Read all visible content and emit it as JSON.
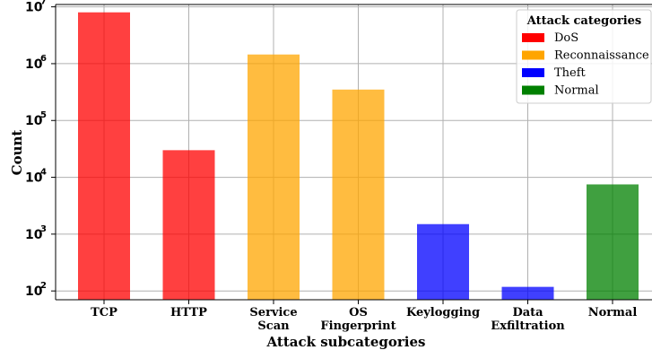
{
  "chart_data": {
    "type": "bar",
    "xlabel": "Attack subcategories",
    "ylabel": "Count",
    "yscale": "log",
    "ylim": [
      70,
      11000000
    ],
    "yticks": [
      {
        "base": "10",
        "exp": "2",
        "value": 100
      },
      {
        "base": "10",
        "exp": "3",
        "value": 1000
      },
      {
        "base": "10",
        "exp": "4",
        "value": 10000
      },
      {
        "base": "10",
        "exp": "5",
        "value": 100000
      },
      {
        "base": "10",
        "exp": "6",
        "value": 1000000
      },
      {
        "base": "10",
        "exp": "7",
        "value": 10000000
      }
    ],
    "grid": true,
    "legend": {
      "title": "Attack categories",
      "placement": "top-right",
      "entries": [
        {
          "name": "DoS",
          "color": "#ff0000"
        },
        {
          "name": "Reconnaissance",
          "color": "#ffa500"
        },
        {
          "name": "Theft",
          "color": "#0000ff"
        },
        {
          "name": "Normal",
          "color": "#008000"
        }
      ]
    },
    "bars": [
      {
        "label": [
          "TCP"
        ],
        "value": 8000000,
        "category": "DoS",
        "color": "#ff0000"
      },
      {
        "label": [
          "HTTP"
        ],
        "value": 30000,
        "category": "DoS",
        "color": "#ff0000"
      },
      {
        "label": [
          "Service",
          "Scan"
        ],
        "value": 1450000,
        "category": "Reconnaissance",
        "color": "#ffa500"
      },
      {
        "label": [
          "OS",
          "Fingerprint"
        ],
        "value": 350000,
        "category": "Reconnaissance",
        "color": "#ffa500"
      },
      {
        "label": [
          "Keylogging"
        ],
        "value": 1500,
        "category": "Theft",
        "color": "#0000ff"
      },
      {
        "label": [
          "Data",
          "Exfiltration"
        ],
        "value": 118,
        "category": "Theft",
        "color": "#0000ff"
      },
      {
        "label": [
          "Normal"
        ],
        "value": 7500,
        "category": "Normal",
        "color": "#008000"
      }
    ]
  }
}
